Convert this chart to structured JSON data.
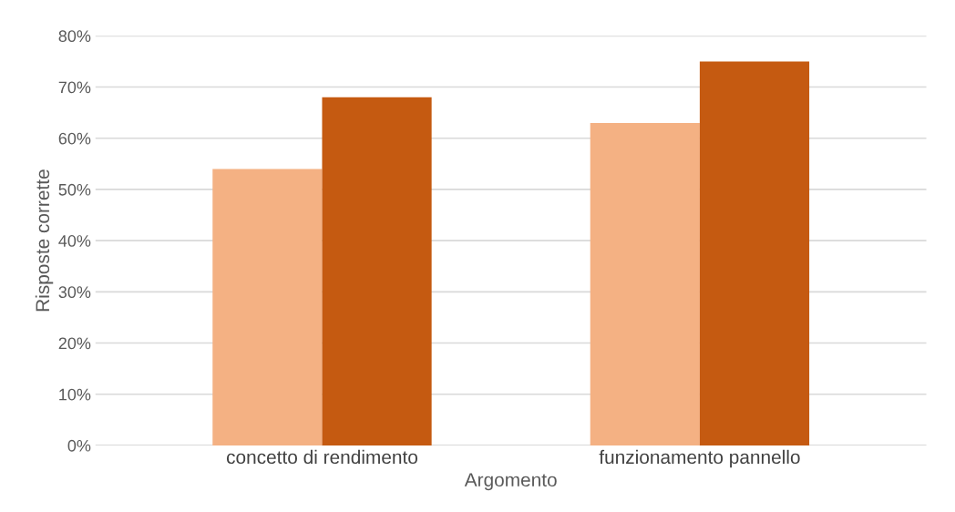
{
  "chart_data": {
    "type": "bar",
    "xlabel": "Argomento",
    "ylabel": "Risposte corrette",
    "categories": [
      "concetto di rendimento",
      "funzionamento pannello"
    ],
    "series": [
      {
        "color": "#f4b183",
        "values": [
          54,
          63
        ]
      },
      {
        "color": "#c55a11",
        "values": [
          68,
          75
        ]
      }
    ],
    "ylim": [
      0,
      80
    ],
    "yticks": [
      {
        "value": 0,
        "label": "0%"
      },
      {
        "value": 10,
        "label": "10%"
      },
      {
        "value": 20,
        "label": "20%"
      },
      {
        "value": 30,
        "label": "30%"
      },
      {
        "value": 40,
        "label": "40%"
      },
      {
        "value": 50,
        "label": "50%"
      },
      {
        "value": 60,
        "label": "60%"
      },
      {
        "value": 70,
        "label": "70%"
      },
      {
        "value": 80,
        "label": "80%"
      }
    ],
    "grid": "y"
  }
}
